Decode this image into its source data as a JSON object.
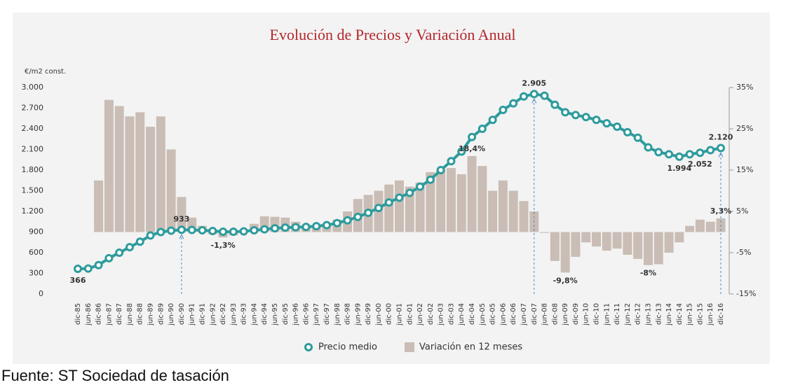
{
  "chart_data": {
    "type": "combo",
    "title": "Evolución de Precios y Variación Anual",
    "y_label": "€/m2 const.",
    "source": "Fuente: ST Sociedad de tasación",
    "categories": [
      "dic-85",
      "jun-86",
      "dic-86",
      "jun-87",
      "dic-87",
      "jun-88",
      "dic-88",
      "jun-89",
      "dic-89",
      "jun-90",
      "dic-90",
      "jun-91",
      "dic-91",
      "jun-92",
      "dic-92",
      "jun-93",
      "dic-93",
      "jun-94",
      "dic-94",
      "jun-95",
      "dic-95",
      "jun-96",
      "dic-96",
      "jun-97",
      "dic-97",
      "jun-98",
      "dic-98",
      "jun-99",
      "dic-99",
      "jun-00",
      "dic-00",
      "jun-01",
      "dic-01",
      "jun-02",
      "dic-02",
      "jun-03",
      "dic-03",
      "jun-04",
      "dic-04",
      "jun-05",
      "dic-05",
      "jun-06",
      "dic-06",
      "jun-07",
      "dic-07",
      "jun-08",
      "dic-08",
      "jun-09",
      "dic-09",
      "jun-10",
      "dic-10",
      "jun-11",
      "dic-11",
      "jun-12",
      "dic-12",
      "jun-13",
      "dic-13",
      "jun-14",
      "dic-14",
      "jun-15",
      "dic-15",
      "jun-16",
      "dic-16"
    ],
    "series": [
      {
        "name": "Variación en 12 meses",
        "type": "bar",
        "axis": "y2",
        "color": "#c9bdb5",
        "values": [
          null,
          null,
          12.5,
          32,
          30.5,
          28,
          29,
          25.5,
          28,
          20,
          8.5,
          3.5,
          1.5,
          -0.5,
          -1.3,
          -0.8,
          0.3,
          2,
          3.8,
          3.7,
          3.5,
          2.5,
          1.5,
          1.5,
          2,
          3,
          5,
          8,
          9,
          10,
          11.5,
          12.5,
          11,
          12,
          14.5,
          15,
          15.5,
          14,
          18.4,
          16,
          10,
          12.5,
          10,
          7.5,
          5,
          -0.2,
          -7,
          -9.8,
          -6,
          -2.5,
          -3.5,
          -4.5,
          -4,
          -5.5,
          -6.5,
          -8,
          -7.8,
          -5,
          -2.5,
          1.5,
          3,
          2.5,
          3.3
        ],
        "value_labels": [
          null,
          null,
          null,
          null,
          null,
          null,
          null,
          null,
          null,
          null,
          null,
          null,
          null,
          null,
          "-1,3%",
          null,
          null,
          null,
          null,
          null,
          null,
          null,
          null,
          null,
          null,
          null,
          null,
          null,
          null,
          null,
          null,
          null,
          null,
          null,
          null,
          null,
          null,
          null,
          "18,4%",
          null,
          null,
          null,
          null,
          null,
          null,
          null,
          null,
          "-9,8%",
          null,
          null,
          null,
          null,
          null,
          null,
          null,
          "-8%",
          null,
          null,
          null,
          null,
          null,
          null,
          "3,3%"
        ]
      },
      {
        "name": "Precio medio",
        "type": "line",
        "color": "#2e9b9d",
        "values": [
          366,
          370,
          420,
          520,
          600,
          680,
          760,
          850,
          900,
          920,
          933,
          930,
          925,
          915,
          905,
          905,
          910,
          925,
          940,
          955,
          965,
          970,
          975,
          985,
          1000,
          1030,
          1070,
          1120,
          1180,
          1250,
          1330,
          1400,
          1470,
          1560,
          1660,
          1800,
          1930,
          2070,
          2280,
          2400,
          2530,
          2675,
          2770,
          2870,
          2905,
          2880,
          2750,
          2640,
          2600,
          2570,
          2530,
          2480,
          2430,
          2350,
          2270,
          2130,
          2060,
          2030,
          1994,
          2030,
          2052,
          2090,
          2120
        ],
        "value_labels": [
          "366",
          null,
          null,
          null,
          null,
          null,
          null,
          null,
          null,
          null,
          "933",
          null,
          null,
          null,
          null,
          null,
          null,
          null,
          null,
          null,
          null,
          null,
          null,
          null,
          null,
          null,
          null,
          null,
          null,
          null,
          null,
          null,
          null,
          null,
          null,
          null,
          null,
          null,
          null,
          null,
          null,
          null,
          null,
          null,
          "2.905",
          null,
          null,
          null,
          null,
          null,
          null,
          null,
          null,
          null,
          null,
          null,
          null,
          null,
          "1.994",
          null,
          "2.052",
          null,
          "2.120"
        ]
      }
    ],
    "ylim": [
      0,
      3000
    ],
    "yticks": [
      0,
      300,
      600,
      900,
      {
        "value": 1200,
        "label": "1.200"
      },
      {
        "value": 1500,
        "label": "1.500"
      },
      {
        "value": 1800,
        "label": "1.800"
      },
      {
        "value": 2100,
        "label": "2.100"
      },
      {
        "value": 2400,
        "label": "2.400"
      },
      {
        "value": 2700,
        "label": "2.700"
      },
      {
        "value": 3000,
        "label": "3.000"
      }
    ],
    "y2lim": [
      -15,
      35
    ],
    "y2ticks": [
      {
        "value": -15,
        "label": "-15%"
      },
      {
        "value": -5,
        "label": "-5%"
      },
      {
        "value": 5,
        "label": "5%"
      },
      {
        "value": 15,
        "label": "15%"
      },
      {
        "value": 25,
        "label": "25%"
      },
      {
        "value": 35,
        "label": "35%"
      }
    ],
    "legend": "bottom"
  }
}
